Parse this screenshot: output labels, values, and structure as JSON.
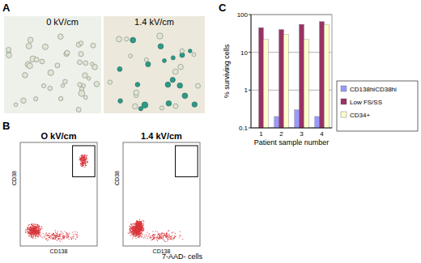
{
  "panels": {
    "a": {
      "label": "A",
      "conditions": [
        "0 kV/cm",
        "1.4 kV/cm"
      ]
    },
    "b": {
      "label": "B",
      "conditions": [
        "O kV/cm",
        "1.4 kV/cm"
      ],
      "y_label": "CD38",
      "x_label": "CD138",
      "gate_label": "7-AAD- cells"
    },
    "c": {
      "label": "C"
    }
  },
  "chart_data": {
    "type": "bar",
    "x_label": "Patient sample number",
    "y_label": "% surviving cells",
    "categories": [
      "1",
      "2",
      "3",
      "4"
    ],
    "series": [
      {
        "name": "CD138hiCD38hi",
        "color": "#9999ff",
        "values": [
          null,
          0.2,
          0.3,
          0.2
        ]
      },
      {
        "name": "Low FS/SS",
        "color": "#993366",
        "values": [
          45,
          40,
          55,
          65
        ]
      },
      {
        "name": "CD34+",
        "color": "#ffffcc",
        "values": [
          22,
          30,
          22,
          55
        ]
      }
    ],
    "log": "y",
    "ylim": [
      0.1,
      100
    ],
    "yticks": [
      0.1,
      1,
      10,
      100
    ],
    "grid": true,
    "legend": "right"
  }
}
